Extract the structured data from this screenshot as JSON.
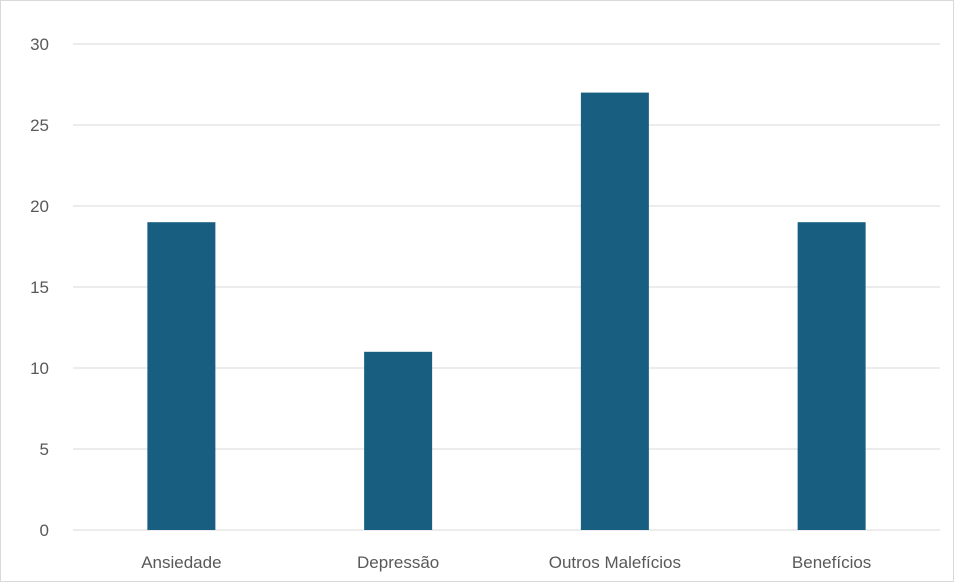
{
  "chart_data": {
    "type": "bar",
    "categories": [
      "Ansiedade",
      "Depressão",
      "Outros Malefícios",
      "Benefícios"
    ],
    "values": [
      19,
      11,
      27,
      19
    ],
    "ylim": [
      0,
      30
    ],
    "yticks": [
      0,
      5,
      10,
      15,
      20,
      25,
      30
    ],
    "grid": true,
    "legend": "none",
    "bar_color": "#175e80",
    "gridline_color": "#d9d9d9",
    "label_color": "#595959"
  }
}
